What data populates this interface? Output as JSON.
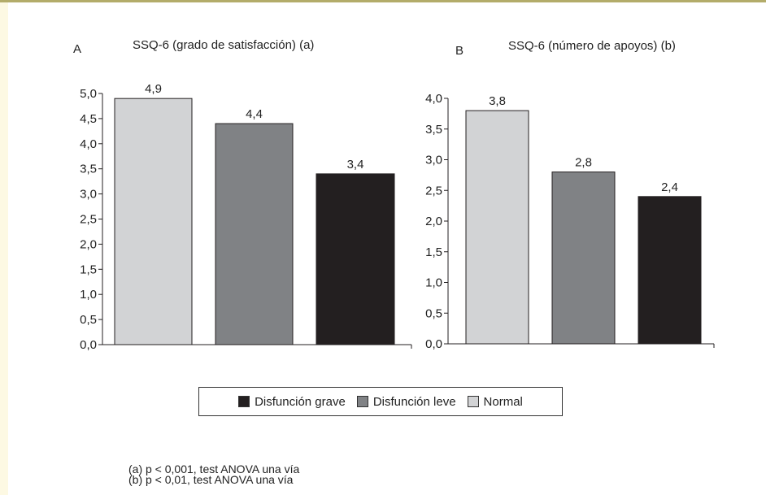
{
  "chart_data": [
    {
      "type": "bar",
      "panel": "A",
      "title": "SSQ-6 (grado de satisfacción) (a)",
      "categories": [
        "Normal",
        "Disfunción leve",
        "Disfunción grave"
      ],
      "values": [
        4.9,
        4.4,
        3.4
      ],
      "value_labels": [
        "4,9",
        "4,4",
        "3,4"
      ],
      "ylim": [
        0,
        5
      ],
      "yticks": [
        0,
        0.5,
        1,
        1.5,
        2,
        2.5,
        3,
        3.5,
        4,
        4.5,
        5
      ],
      "ytick_labels": [
        "0,0",
        "0,5",
        "1,0",
        "1,5",
        "2,0",
        "2,5",
        "3,0",
        "3,5",
        "4,0",
        "4,5",
        "5,0"
      ],
      "xlabel": "",
      "ylabel": "",
      "grid": false
    },
    {
      "type": "bar",
      "panel": "B",
      "title": "SSQ-6 (número de apoyos) (b)",
      "categories": [
        "Normal",
        "Disfunción leve",
        "Disfunción grave"
      ],
      "values": [
        3.8,
        2.8,
        2.4
      ],
      "value_labels": [
        "3,8",
        "2,8",
        "2,4"
      ],
      "ylim": [
        0,
        4
      ],
      "yticks": [
        0,
        0.5,
        1,
        1.5,
        2,
        2.5,
        3,
        3.5,
        4
      ],
      "ytick_labels": [
        "0,0",
        "0,5",
        "1,0",
        "1,5",
        "2,0",
        "2,5",
        "3,0",
        "3,5",
        "4,0"
      ],
      "xlabel": "",
      "ylabel": "",
      "grid": false
    }
  ],
  "colors": {
    "Normal": "#d2d3d5",
    "Disfunción leve": "#808285",
    "Disfunción grave": "#231f20"
  },
  "legend": {
    "placement": "bottom-center",
    "items": [
      {
        "label": "Disfunción grave",
        "color": "#231f20"
      },
      {
        "label": "Disfunción leve",
        "color": "#808285"
      },
      {
        "label": "Normal",
        "color": "#d2d3d5"
      }
    ]
  },
  "notes": [
    "(a) p < 0,001, test ANOVA una vía",
    "(b) p < 0,01, test ANOVA una vía"
  ]
}
